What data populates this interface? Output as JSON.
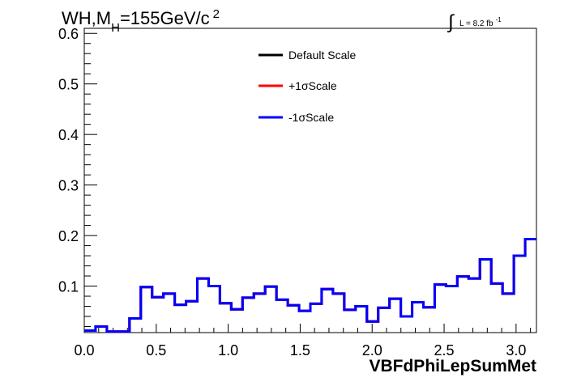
{
  "chart_data": {
    "type": "line",
    "step": true,
    "title_main": "WH,M",
    "title_sub": "H",
    "title_rest": "=155GeV/c",
    "title_sup": "2",
    "lumi_prefix": "∫",
    "lumi_text": "L = 8.2 fb",
    "lumi_sup": "-1",
    "xlabel": "VBFdPhiLepSumMet",
    "xlim": [
      0.0,
      3.1416
    ],
    "ylim": [
      0.008,
      0.61
    ],
    "xticks": [
      "0.0",
      "0.5",
      "1.0",
      "1.5",
      "2.0",
      "2.5",
      "3.0"
    ],
    "yticks": [
      "0.1",
      "0.2",
      "0.3",
      "0.4",
      "0.5",
      "0.6"
    ],
    "ytick_values": [
      0.1,
      0.2,
      0.3,
      0.4,
      0.5,
      0.6
    ],
    "bin_edges": [
      0.0,
      0.0785,
      0.1571,
      0.2356,
      0.3142,
      0.3927,
      0.4712,
      0.5498,
      0.6283,
      0.7069,
      0.7854,
      0.8639,
      0.9425,
      1.021,
      1.0996,
      1.1781,
      1.2566,
      1.3352,
      1.4137,
      1.4923,
      1.5708,
      1.6493,
      1.7279,
      1.8064,
      1.885,
      1.9635,
      2.042,
      2.1206,
      2.1991,
      2.2777,
      2.3562,
      2.4347,
      2.5133,
      2.5918,
      2.6704,
      2.7489,
      2.8274,
      2.906,
      2.9845,
      3.0631,
      3.1416
    ],
    "legend_placement": "top-center",
    "series": [
      {
        "name": "Default Scale",
        "color": "#000000",
        "values": [
          0.012,
          0.02,
          0.01,
          0.01,
          0.036,
          0.098,
          0.078,
          0.085,
          0.063,
          0.07,
          0.115,
          0.1,
          0.066,
          0.054,
          0.077,
          0.085,
          0.099,
          0.073,
          0.062,
          0.051,
          0.065,
          0.094,
          0.085,
          0.053,
          0.06,
          0.03,
          0.057,
          0.075,
          0.04,
          0.068,
          0.058,
          0.103,
          0.1,
          0.119,
          0.115,
          0.153,
          0.105,
          0.085,
          0.16,
          0.193
        ]
      },
      {
        "name": "+1σScale",
        "color": "#ff0000",
        "values": [
          0.012,
          0.02,
          0.01,
          0.01,
          0.036,
          0.098,
          0.078,
          0.085,
          0.063,
          0.07,
          0.115,
          0.1,
          0.066,
          0.054,
          0.077,
          0.085,
          0.099,
          0.073,
          0.062,
          0.051,
          0.065,
          0.094,
          0.085,
          0.053,
          0.06,
          0.03,
          0.057,
          0.075,
          0.04,
          0.068,
          0.058,
          0.103,
          0.1,
          0.119,
          0.115,
          0.153,
          0.105,
          0.085,
          0.16,
          0.193
        ]
      },
      {
        "name": "-1σScale",
        "color": "#0000ff",
        "values": [
          0.012,
          0.02,
          0.01,
          0.01,
          0.036,
          0.098,
          0.078,
          0.085,
          0.063,
          0.07,
          0.115,
          0.1,
          0.066,
          0.054,
          0.077,
          0.085,
          0.099,
          0.073,
          0.062,
          0.051,
          0.065,
          0.094,
          0.085,
          0.053,
          0.06,
          0.03,
          0.057,
          0.075,
          0.04,
          0.068,
          0.058,
          0.103,
          0.1,
          0.119,
          0.115,
          0.153,
          0.105,
          0.085,
          0.16,
          0.193
        ]
      }
    ]
  }
}
